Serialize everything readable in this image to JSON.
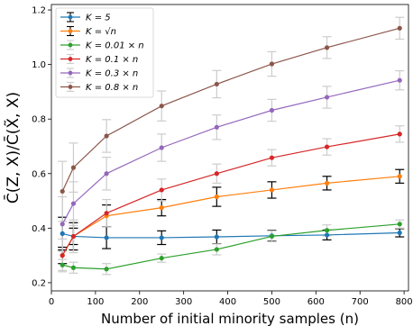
{
  "chart_data": {
    "type": "line",
    "xlabel": "Number of initial minority samples (n)",
    "ylabel": "C̄(Z, X)/C̄(X̃, X)",
    "xlim": [
      0,
      810
    ],
    "ylim": [
      0.17,
      1.22
    ],
    "xticks": [
      0,
      100,
      200,
      300,
      400,
      500,
      600,
      700,
      800
    ],
    "yticks": [
      0.2,
      0.4,
      0.6,
      0.8,
      1.0,
      1.2
    ],
    "ytick_labels": [
      "0.2",
      "0.4",
      "0.6",
      "0.8",
      "1.0",
      "1.2"
    ],
    "grid": false,
    "legend_position": "top-left",
    "x": [
      25,
      50,
      125,
      250,
      375,
      500,
      625,
      790
    ],
    "series": [
      {
        "name": "K = 5",
        "color": "#1f77b4",
        "errorbar_color": "#000000",
        "values": [
          0.38,
          0.37,
          0.365,
          0.365,
          0.368,
          0.372,
          0.375,
          0.383
        ],
        "errors": [
          0.06,
          0.05,
          0.04,
          0.025,
          0.025,
          0.02,
          0.018,
          0.015
        ]
      },
      {
        "name": "K = √n",
        "color": "#ff7f0e",
        "errorbar_color": "#000000",
        "values": [
          0.3,
          0.37,
          0.445,
          0.475,
          0.515,
          0.54,
          0.565,
          0.59
        ],
        "errors": [
          0.03,
          0.03,
          0.04,
          0.03,
          0.035,
          0.03,
          0.025,
          0.025
        ]
      },
      {
        "name": "K = 0.01 × n",
        "color": "#2ca02c",
        "errorbar_color": "#cccccc",
        "values": [
          0.265,
          0.255,
          0.25,
          0.29,
          0.322,
          0.37,
          0.392,
          0.415
        ],
        "errors": [
          0.02,
          0.02,
          0.02,
          0.015,
          0.02,
          0.02,
          0.02,
          0.015
        ]
      },
      {
        "name": "K = 0.1 × n",
        "color": "#d62728",
        "errorbar_color": "#cccccc",
        "values": [
          0.3,
          0.37,
          0.455,
          0.54,
          0.6,
          0.658,
          0.698,
          0.745
        ],
        "errors": [
          0.06,
          0.06,
          0.05,
          0.04,
          0.035,
          0.03,
          0.03,
          0.03
        ]
      },
      {
        "name": "K = 0.3 × n",
        "color": "#9467bd",
        "errorbar_color": "#cccccc",
        "values": [
          0.415,
          0.49,
          0.6,
          0.695,
          0.77,
          0.832,
          0.88,
          0.942
        ],
        "errors": [
          0.1,
          0.08,
          0.06,
          0.05,
          0.045,
          0.04,
          0.04,
          0.035
        ]
      },
      {
        "name": "K = 0.8 × n",
        "color": "#8c564b",
        "errorbar_color": "#cccccc",
        "values": [
          0.535,
          0.622,
          0.738,
          0.848,
          0.928,
          1.002,
          1.062,
          1.133
        ],
        "errors": [
          0.11,
          0.09,
          0.06,
          0.055,
          0.05,
          0.045,
          0.04,
          0.04
        ]
      }
    ]
  }
}
